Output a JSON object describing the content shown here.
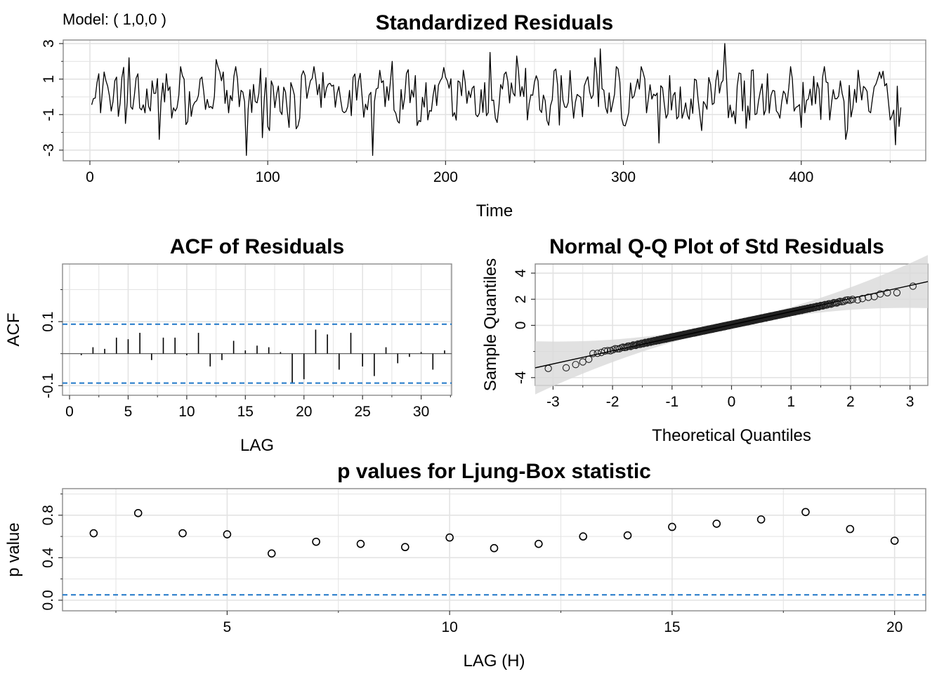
{
  "model_label": "Model: ( 1,0,0 )",
  "colors": {
    "series": "#000000",
    "guide": "#1f77c8",
    "grid": "#e3e3e3",
    "frame": "#8a8a8a",
    "band": "#d9d9d9"
  },
  "chart_data": [
    {
      "type": "line",
      "title": "Standardized Residuals",
      "xlabel": "Time",
      "ylabel": "",
      "xlim": [
        -15,
        470
      ],
      "ylim": [
        -3.6,
        3.2
      ],
      "xticks": [
        0,
        100,
        200,
        300,
        400
      ],
      "xtick_labels": [
        "0",
        "100",
        "200",
        "300",
        "400"
      ],
      "yticks": [
        -3,
        -1,
        1,
        3
      ],
      "ytick_labels": [
        "-3",
        "-1",
        "1",
        "3"
      ],
      "n": 456,
      "anchor_points": [
        {
          "x": 2,
          "y": -0.1
        },
        {
          "x": 4,
          "y": 0.8
        },
        {
          "x": 5,
          "y": 1.3
        },
        {
          "x": 6,
          "y": -0.9
        },
        {
          "x": 8,
          "y": 1.4
        },
        {
          "x": 10,
          "y": 0.6
        },
        {
          "x": 12,
          "y": -0.8
        },
        {
          "x": 14,
          "y": 0.9
        },
        {
          "x": 16,
          "y": -1.1
        },
        {
          "x": 20,
          "y": -1.5
        },
        {
          "x": 22,
          "y": 2.2
        },
        {
          "x": 24,
          "y": -0.7
        },
        {
          "x": 27,
          "y": 1.3
        },
        {
          "x": 31,
          "y": -0.9
        },
        {
          "x": 35,
          "y": 0.9
        },
        {
          "x": 39,
          "y": -2.4
        },
        {
          "x": 43,
          "y": 1.3
        },
        {
          "x": 48,
          "y": -0.8
        },
        {
          "x": 52,
          "y": 1.2
        },
        {
          "x": 57,
          "y": -1.1
        },
        {
          "x": 62,
          "y": 1.0
        },
        {
          "x": 67,
          "y": -0.6
        },
        {
          "x": 71,
          "y": 2.1
        },
        {
          "x": 75,
          "y": 1.4
        },
        {
          "x": 78,
          "y": -0.9
        },
        {
          "x": 83,
          "y": 1.0
        },
        {
          "x": 88,
          "y": -3.3
        },
        {
          "x": 92,
          "y": 0.7
        },
        {
          "x": 97,
          "y": -2.3
        },
        {
          "x": 102,
          "y": 0.9
        },
        {
          "x": 108,
          "y": -1.0
        },
        {
          "x": 113,
          "y": 0.8
        },
        {
          "x": 118,
          "y": -1.2
        },
        {
          "x": 124,
          "y": 0.9
        },
        {
          "x": 130,
          "y": -0.6
        },
        {
          "x": 136,
          "y": 0.6
        },
        {
          "x": 142,
          "y": -0.8
        },
        {
          "x": 148,
          "y": 1.1
        },
        {
          "x": 153,
          "y": 0.1
        },
        {
          "x": 159,
          "y": -3.3
        },
        {
          "x": 164,
          "y": 0.8
        },
        {
          "x": 170,
          "y": 2.0
        },
        {
          "x": 176,
          "y": -0.7
        },
        {
          "x": 183,
          "y": 1.2
        },
        {
          "x": 190,
          "y": -1.3
        },
        {
          "x": 197,
          "y": 0.9
        },
        {
          "x": 204,
          "y": -1.1
        },
        {
          "x": 210,
          "y": 1.5
        },
        {
          "x": 217,
          "y": -1.0
        },
        {
          "x": 222,
          "y": 0.8
        },
        {
          "x": 225,
          "y": 2.5
        },
        {
          "x": 228,
          "y": -1.2
        },
        {
          "x": 234,
          "y": 1.4
        },
        {
          "x": 240,
          "y": 2.3
        },
        {
          "x": 246,
          "y": -1.3
        },
        {
          "x": 252,
          "y": 0.9
        },
        {
          "x": 258,
          "y": -1.6
        },
        {
          "x": 265,
          "y": 1.2
        },
        {
          "x": 272,
          "y": -1.2
        },
        {
          "x": 279,
          "y": 0.9
        },
        {
          "x": 284,
          "y": 2.2
        },
        {
          "x": 287,
          "y": 2.7
        },
        {
          "x": 290,
          "y": -0.6
        },
        {
          "x": 296,
          "y": 1.7
        },
        {
          "x": 302,
          "y": -1.3
        },
        {
          "x": 308,
          "y": 1.0
        },
        {
          "x": 313,
          "y": -0.9
        },
        {
          "x": 320,
          "y": -2.6
        },
        {
          "x": 326,
          "y": 1.2
        },
        {
          "x": 333,
          "y": -1.2
        },
        {
          "x": 340,
          "y": 1.0
        },
        {
          "x": 347,
          "y": -0.7
        },
        {
          "x": 353,
          "y": 1.5
        },
        {
          "x": 357,
          "y": 3.0
        },
        {
          "x": 362,
          "y": -0.8
        },
        {
          "x": 368,
          "y": 0.9
        },
        {
          "x": 374,
          "y": -1.0
        },
        {
          "x": 381,
          "y": 1.3
        },
        {
          "x": 388,
          "y": -1.2
        },
        {
          "x": 395,
          "y": 1.0
        },
        {
          "x": 402,
          "y": -0.9
        },
        {
          "x": 409,
          "y": 0.8
        },
        {
          "x": 416,
          "y": -1.3
        },
        {
          "x": 422,
          "y": 0.9
        },
        {
          "x": 425,
          "y": -2.4
        },
        {
          "x": 432,
          "y": 1.5
        },
        {
          "x": 438,
          "y": -0.8
        },
        {
          "x": 444,
          "y": 1.4
        },
        {
          "x": 450,
          "y": -1.3
        },
        {
          "x": 453,
          "y": -2.7
        },
        {
          "x": 454,
          "y": 0.6
        },
        {
          "x": 456,
          "y": -0.6
        }
      ]
    },
    {
      "type": "bar",
      "title": "ACF of Residuals",
      "xlabel": "LAG",
      "ylabel": "ACF",
      "xlim": [
        -0.6,
        32.6
      ],
      "ylim": [
        -0.13,
        0.28
      ],
      "xticks": [
        0,
        5,
        10,
        15,
        20,
        25,
        30
      ],
      "xtick_labels": [
        "0",
        "5",
        "10",
        "15",
        "20",
        "25",
        "30"
      ],
      "yticks": [
        -0.1,
        0.1
      ],
      "ytick_labels": [
        "-0.1",
        "0.1"
      ],
      "lags": [
        1,
        2,
        3,
        4,
        5,
        6,
        7,
        8,
        9,
        10,
        11,
        12,
        13,
        14,
        15,
        16,
        17,
        18,
        19,
        20,
        21,
        22,
        23,
        24,
        25,
        26,
        27,
        28,
        29,
        30,
        31,
        32
      ],
      "values": [
        -0.005,
        0.02,
        0.015,
        0.05,
        0.045,
        0.065,
        -0.02,
        0.05,
        0.05,
        -0.005,
        0.065,
        -0.04,
        -0.02,
        0.04,
        0.01,
        0.025,
        0.02,
        0.005,
        -0.09,
        -0.08,
        0.075,
        0.06,
        -0.05,
        0.065,
        -0.04,
        -0.07,
        0.02,
        -0.03,
        -0.01,
        0.005,
        -0.05,
        0.01
      ],
      "conf_limits": [
        0.092,
        -0.092
      ]
    },
    {
      "type": "scatter",
      "title": "Normal Q-Q Plot of Std Residuals",
      "xlabel": "Theoretical Quantiles",
      "ylabel": "Sample Quantiles",
      "xlim": [
        -3.3,
        3.3
      ],
      "ylim": [
        -4.6,
        4.7
      ],
      "xticks": [
        -3,
        -2,
        -1,
        0,
        1,
        2,
        3
      ],
      "xtick_labels": [
        "-3",
        "-2",
        "-1",
        "0",
        "1",
        "2",
        "3"
      ],
      "yticks": [
        -4,
        0,
        2,
        4
      ],
      "ytick_labels": [
        "-4",
        "0",
        "2",
        "4"
      ],
      "n": 456,
      "ref_line": {
        "intercept": 0.05,
        "slope": 1.0
      },
      "tail_points": [
        {
          "x": -3.08,
          "y": -3.3
        },
        {
          "x": -2.78,
          "y": -3.25
        },
        {
          "x": -2.62,
          "y": -3.0
        },
        {
          "x": -2.5,
          "y": -2.8
        },
        {
          "x": -2.4,
          "y": -2.6
        },
        {
          "x": 2.12,
          "y": 1.95
        },
        {
          "x": 2.2,
          "y": 2.05
        },
        {
          "x": 2.3,
          "y": 2.15
        },
        {
          "x": 2.4,
          "y": 2.2
        },
        {
          "x": 2.5,
          "y": 2.4
        },
        {
          "x": 2.62,
          "y": 2.5
        },
        {
          "x": 2.78,
          "y": 2.5
        },
        {
          "x": 3.05,
          "y": 3.0
        }
      ]
    },
    {
      "type": "scatter",
      "title": "p values for Ljung-Box statistic",
      "xlabel": "LAG (H)",
      "ylabel": "p value",
      "xlim": [
        1.3,
        20.7
      ],
      "ylim": [
        -0.1,
        1.05
      ],
      "xticks": [
        5,
        10,
        15,
        20
      ],
      "xtick_labels": [
        "5",
        "10",
        "15",
        "20"
      ],
      "yticks": [
        0.0,
        0.4,
        0.8
      ],
      "ytick_labels": [
        "0.0",
        "0.4",
        "0.8"
      ],
      "x": [
        2,
        3,
        4,
        5,
        6,
        7,
        8,
        9,
        10,
        11,
        12,
        13,
        14,
        15,
        16,
        17,
        18,
        19,
        20
      ],
      "y": [
        0.63,
        0.82,
        0.63,
        0.62,
        0.44,
        0.55,
        0.53,
        0.5,
        0.59,
        0.49,
        0.53,
        0.6,
        0.61,
        0.69,
        0.72,
        0.76,
        0.83,
        0.67,
        0.56
      ],
      "guide_level": 0.05
    }
  ]
}
